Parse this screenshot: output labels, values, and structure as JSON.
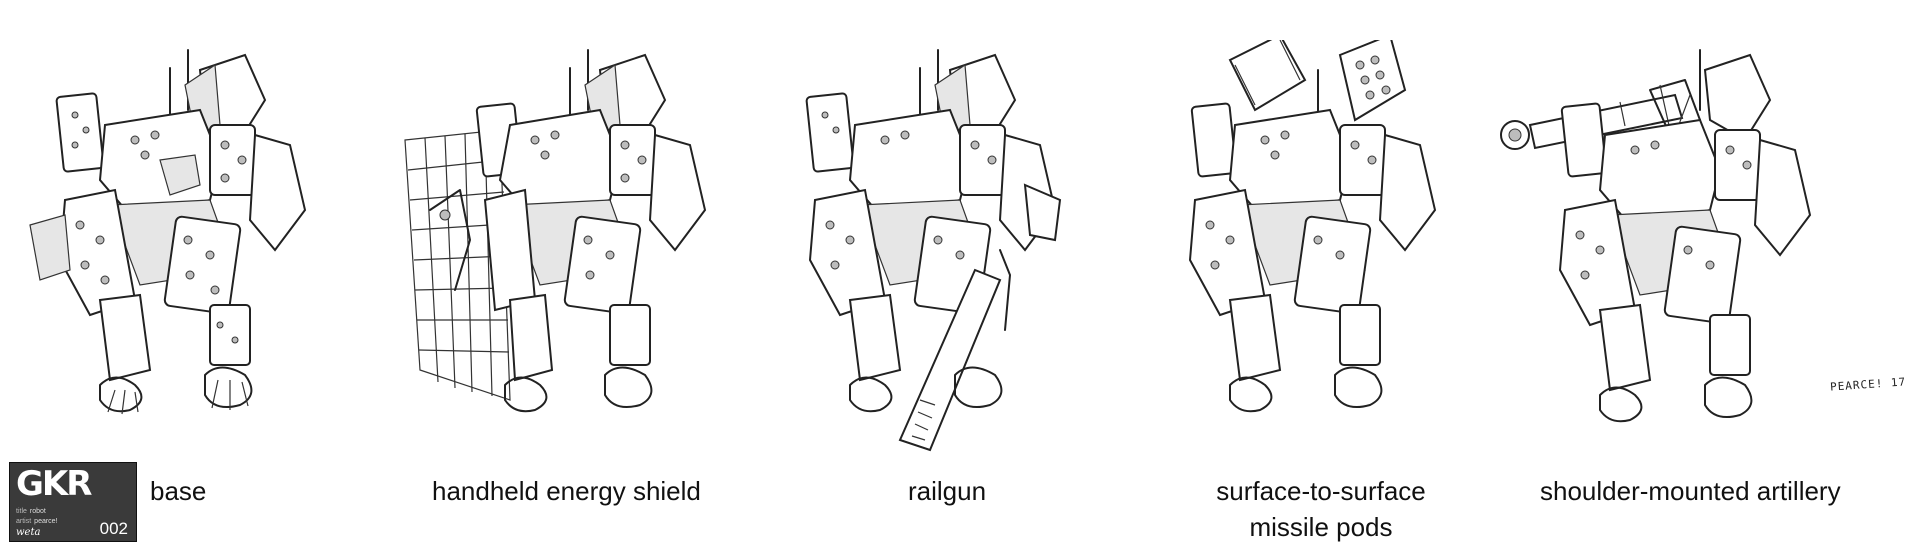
{
  "variants": [
    {
      "caption": "base",
      "icon": "robot-base-icon"
    },
    {
      "caption": "handheld energy shield",
      "icon": "robot-shield-icon"
    },
    {
      "caption": "railgun",
      "icon": "robot-railgun-icon"
    },
    {
      "caption": "surface-to-surface missile pods",
      "icon": "robot-missile-pods-icon"
    },
    {
      "caption": "shoulder-mounted artillery",
      "icon": "robot-artillery-icon"
    }
  ],
  "title_block": {
    "logo": "GKR",
    "title_key": "title",
    "title_value": "robot",
    "artist_key": "artist",
    "artist_value": "pearce!",
    "studio_mark": "weta",
    "sheet_number": "002"
  },
  "signature": "PEARCE! 17"
}
